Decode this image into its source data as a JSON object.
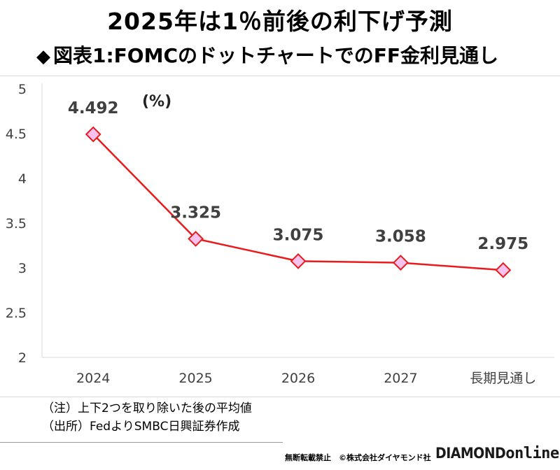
{
  "title": "2025年は1％前後の利下げ予測",
  "subtitle": "図表1:FOMCのドットチャートでのFF金利見通し",
  "subtitle_bullet": "◆",
  "notes": [
    "（注）上下2つを取り除いた後の平均値",
    "（出所）FedよりSMBC日興証券作成"
  ],
  "footer": {
    "copyright": "無断転載禁止　©株式会社ダイヤモンド社",
    "logo_brand": "DIAMOND",
    "logo_suffix": "online"
  },
  "chart_data": {
    "type": "line",
    "title": "2025年は1％前後の利下げ予測",
    "unit_label": "(%)",
    "categories": [
      "2024",
      "2025",
      "2026",
      "2027",
      "長期見通し"
    ],
    "series": [
      {
        "values": [
          4.492,
          3.325,
          3.075,
          3.058,
          2.975
        ]
      }
    ],
    "data_labels": [
      "4.492",
      "3.325",
      "3.075",
      "3.058",
      "2.975"
    ],
    "y_ticks": [
      "2",
      "2.5",
      "3",
      "3.5",
      "4",
      "4.5",
      "5"
    ],
    "ylim": [
      2,
      5
    ],
    "grid": false,
    "colors": {
      "line": "#e81c1c",
      "marker_fill": "#f7c3ee",
      "marker_stroke": "#e81c1c",
      "axis": "#d9d9d9",
      "label": "#404040"
    }
  }
}
